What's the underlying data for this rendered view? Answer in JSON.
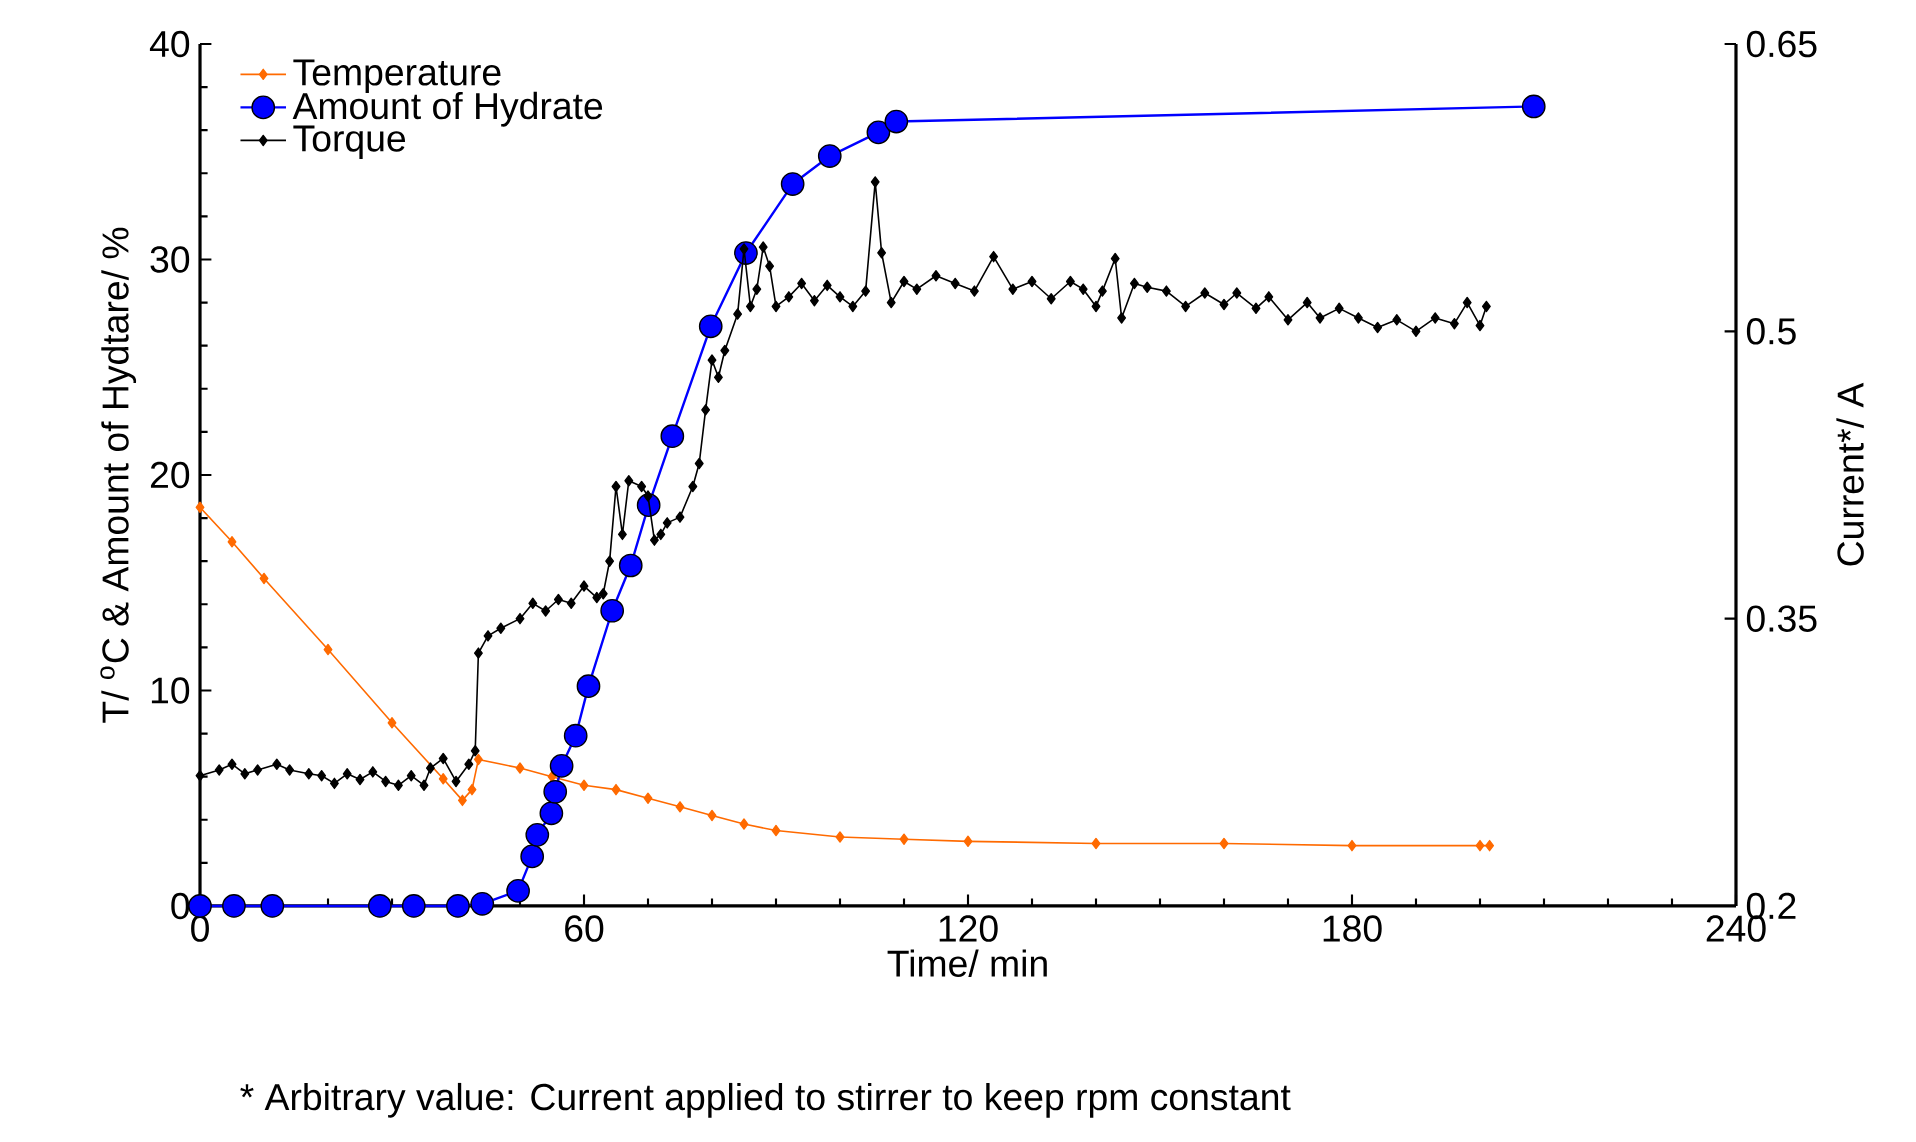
{
  "chart_data": {
    "type": "line",
    "xlabel": "Time/ min",
    "ylabel": "T/ $^{o}$C & Amount of Hydtare/ %",
    "y2label": "Current*/ A",
    "annotations": [
      "* Arbitrary value: Current applied to stirrer to keep rpm constant"
    ],
    "xlim": [
      0,
      240
    ],
    "xticks": [
      0,
      60,
      120,
      180,
      240
    ],
    "ylim": [
      0,
      40
    ],
    "yticks": [
      0,
      10,
      20,
      30,
      40
    ],
    "y2lim": [
      0.2,
      0.65
    ],
    "y2ticks": [
      0.2,
      0.35,
      0.5,
      0.65
    ],
    "legend": "top left",
    "series": [
      {
        "name": "Temperature",
        "color": "#ff6a00",
        "marker": "diamond",
        "x": [
          0,
          5,
          10,
          20,
          30,
          38,
          41,
          42.5,
          43.5,
          50,
          55,
          60,
          65,
          70,
          75,
          80,
          85,
          90,
          100,
          110,
          120,
          140,
          160,
          180,
          200,
          201.5
        ],
        "values": [
          18.5,
          16.9,
          15.2,
          11.9,
          8.5,
          5.9,
          4.9,
          5.4,
          6.8,
          6.4,
          6.0,
          5.6,
          5.4,
          5.0,
          4.6,
          4.2,
          3.8,
          3.5,
          3.2,
          3.1,
          3.0,
          2.9,
          2.9,
          2.8,
          2.8,
          2.8
        ]
      },
      {
        "name": "Amount of Hydrate",
        "color": "#0000ff",
        "marker": "circle",
        "x": [
          0,
          5.3,
          11.3,
          28.1,
          33.4,
          40.3,
          44.1,
          49.7,
          51.9,
          52.7,
          54.9,
          55.5,
          56.5,
          58.7,
          60.7,
          64.4,
          67.3,
          70.1,
          73.8,
          79.8,
          85.3,
          92.6,
          98.4,
          106,
          108.8,
          208.4
        ],
        "values": [
          0,
          0,
          0,
          0,
          0,
          0,
          0.1,
          0.7,
          2.3,
          3.3,
          4.3,
          5.3,
          6.5,
          7.9,
          10.2,
          13.7,
          15.8,
          18.6,
          21.8,
          26.9,
          30.3,
          33.5,
          34.8,
          35.9,
          36.4,
          37.1
        ]
      },
      {
        "name": "Torque",
        "color": "#000000",
        "marker": "diamond",
        "axis": "y2",
        "x": [
          0,
          3,
          5,
          7,
          9,
          12,
          14,
          17,
          19,
          21,
          23,
          25,
          27,
          29,
          31,
          33,
          35,
          36,
          38,
          40,
          42,
          43,
          43.5,
          45,
          47,
          50,
          52,
          54,
          56,
          58,
          60,
          62,
          63,
          64,
          65,
          66,
          67,
          69,
          70,
          71,
          72,
          73,
          75,
          77,
          78,
          79,
          80,
          81,
          82,
          84,
          85,
          86,
          87,
          88,
          89,
          90,
          92,
          94,
          96,
          98,
          100,
          102,
          104,
          105.5,
          106.5,
          108,
          110,
          112,
          115,
          118,
          121,
          124,
          127,
          130,
          133,
          136,
          138,
          140,
          141,
          143,
          144,
          146,
          148,
          151,
          154,
          157,
          160,
          162,
          165,
          167,
          170,
          173,
          175,
          178,
          181,
          184,
          187,
          190,
          193,
          196,
          198,
          200,
          201
        ],
        "values": [
          0.268,
          0.271,
          0.274,
          0.269,
          0.271,
          0.274,
          0.271,
          0.269,
          0.268,
          0.264,
          0.269,
          0.266,
          0.27,
          0.265,
          0.263,
          0.268,
          0.263,
          0.272,
          0.277,
          0.265,
          0.274,
          0.281,
          0.332,
          0.341,
          0.345,
          0.35,
          0.358,
          0.354,
          0.36,
          0.358,
          0.367,
          0.361,
          0.363,
          0.38,
          0.419,
          0.394,
          0.422,
          0.419,
          0.414,
          0.391,
          0.394,
          0.4,
          0.403,
          0.419,
          0.431,
          0.459,
          0.485,
          0.476,
          0.49,
          0.509,
          0.543,
          0.513,
          0.522,
          0.544,
          0.534,
          0.513,
          0.518,
          0.525,
          0.516,
          0.524,
          0.518,
          0.513,
          0.521,
          0.578,
          0.541,
          0.515,
          0.526,
          0.522,
          0.529,
          0.525,
          0.521,
          0.539,
          0.522,
          0.526,
          0.517,
          0.526,
          0.522,
          0.513,
          0.521,
          0.538,
          0.507,
          0.525,
          0.523,
          0.521,
          0.513,
          0.52,
          0.514,
          0.52,
          0.512,
          0.518,
          0.506,
          0.515,
          0.507,
          0.512,
          0.507,
          0.502,
          0.506,
          0.5,
          0.507,
          0.504,
          0.515,
          0.503,
          0.513
        ]
      }
    ]
  }
}
